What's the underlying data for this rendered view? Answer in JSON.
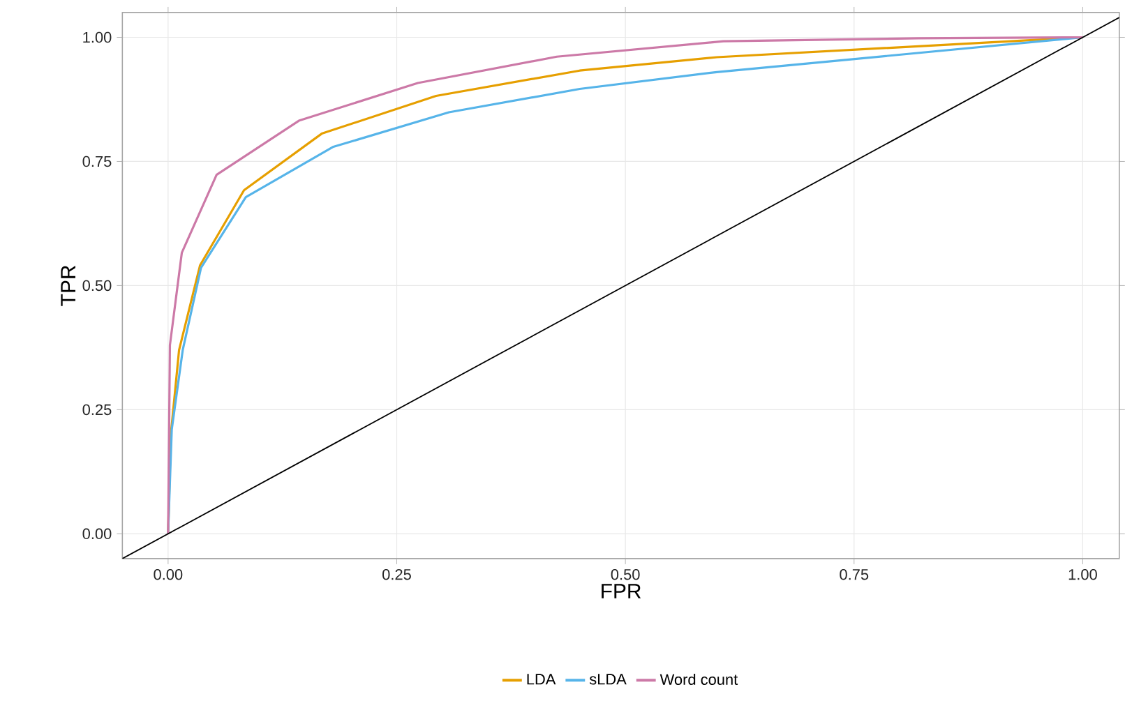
{
  "chart_data": {
    "type": "line",
    "xlabel": "FPR",
    "ylabel": "TPR",
    "xlim": [
      -0.05,
      1.04
    ],
    "ylim": [
      -0.05,
      1.05
    ],
    "xticks": [
      {
        "value": 0,
        "label": "0.00"
      },
      {
        "value": 0.25,
        "label": "0.25"
      },
      {
        "value": 0.5,
        "label": "0.50"
      },
      {
        "value": 0.75,
        "label": "0.75"
      },
      {
        "value": 1,
        "label": "1.00"
      }
    ],
    "yticks": [
      {
        "value": 0,
        "label": "0.00"
      },
      {
        "value": 0.25,
        "label": "0.25"
      },
      {
        "value": 0.5,
        "label": "0.50"
      },
      {
        "value": 0.75,
        "label": "0.75"
      },
      {
        "value": 1,
        "label": "1.00"
      }
    ],
    "grid": true,
    "legend": "bottom",
    "series": [
      {
        "name": "LDA",
        "color": "#e69f00",
        "x": [
          0,
          0.003,
          0.012,
          0.035,
          0.083,
          0.168,
          0.293,
          0.45,
          0.6,
          1
        ],
        "values": [
          0,
          0.2,
          0.37,
          0.541,
          0.692,
          0.806,
          0.882,
          0.933,
          0.96,
          1
        ]
      },
      {
        "name": "sLDA",
        "color": "#56b4e9",
        "x": [
          0,
          0.004,
          0.016,
          0.036,
          0.085,
          0.18,
          0.307,
          0.45,
          0.6,
          1
        ],
        "values": [
          0,
          0.21,
          0.37,
          0.536,
          0.678,
          0.779,
          0.849,
          0.896,
          0.93,
          1
        ]
      },
      {
        "name": "Word count",
        "color": "#cc79a7",
        "x": [
          0,
          0.002,
          0.015,
          0.053,
          0.143,
          0.273,
          0.425,
          0.607,
          0.82,
          1
        ],
        "values": [
          0,
          0.38,
          0.566,
          0.723,
          0.832,
          0.908,
          0.961,
          0.992,
          0.998,
          1
        ]
      },
      {
        "type": "line",
        "color": "#000000",
        "x": [
          -0.05,
          1.04
        ],
        "values": [
          -0.05,
          1.04
        ]
      }
    ]
  }
}
